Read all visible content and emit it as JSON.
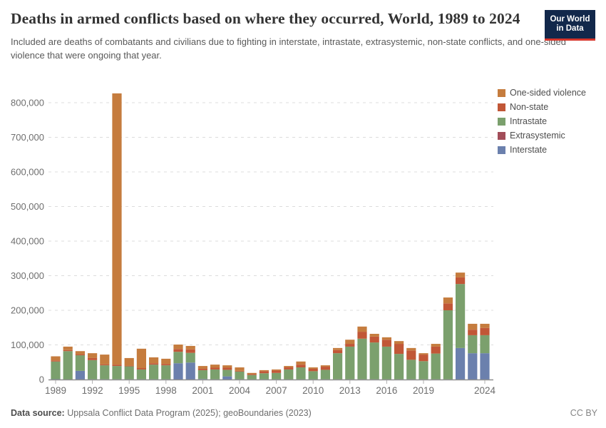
{
  "header": {
    "title": "Deaths in armed conflicts based on where they occurred, World, 1989 to 2024",
    "subtitle": "Included are deaths of combatants and civilians due to fighting in interstate, intrastate, extrasystemic, non-state conflicts, and one-sided violence that were ongoing that year.",
    "logo_line1": "Our World",
    "logo_line2": "in Data",
    "logo_bg_color": "#12284b",
    "logo_accent_color": "#d7362c"
  },
  "footer": {
    "datasource_label": "Data source:",
    "datasource_value": "Uppsala Conflict Data Program (2025); geoBoundaries (2023)",
    "license": "CC BY"
  },
  "legend": [
    {
      "key": "one_sided",
      "label": "One-sided violence",
      "color": "#C57C3E"
    },
    {
      "key": "non_state",
      "label": "Non-state",
      "color": "#C15737"
    },
    {
      "key": "intrastate",
      "label": "Intrastate",
      "color": "#7BA06D"
    },
    {
      "key": "extrasystemic",
      "label": "Extrasystemic",
      "color": "#A24D59"
    },
    {
      "key": "interstate",
      "label": "Interstate",
      "color": "#6B80AD"
    }
  ],
  "chart_data": {
    "type": "bar",
    "stacked": true,
    "title": "Deaths in armed conflicts based on where they occurred, World, 1989 to 2024",
    "xlabel": "",
    "ylabel": "",
    "ylim": [
      0,
      800000
    ],
    "y_ticks": [
      0,
      100000,
      200000,
      300000,
      400000,
      500000,
      600000,
      700000,
      800000
    ],
    "x_tick_years": [
      1989,
      1992,
      1995,
      1998,
      2001,
      2004,
      2007,
      2010,
      2013,
      2016,
      2019,
      2024
    ],
    "grid": "dashed-horizontal",
    "legend_position": "right",
    "years": [
      1989,
      1990,
      1991,
      1992,
      1993,
      1994,
      1995,
      1996,
      1997,
      1998,
      1999,
      2000,
      2001,
      2002,
      2003,
      2004,
      2005,
      2006,
      2007,
      2008,
      2009,
      2010,
      2011,
      2012,
      2013,
      2014,
      2015,
      2016,
      2017,
      2018,
      2019,
      2020,
      2021,
      2022,
      2023,
      2024
    ],
    "stack_order": [
      "interstate",
      "extrasystemic",
      "intrastate",
      "non_state",
      "one_sided"
    ],
    "series": [
      {
        "name": "Interstate",
        "key": "interstate",
        "color": "#6B80AD",
        "values": [
          1000,
          0,
          25000,
          500,
          500,
          500,
          500,
          500,
          500,
          500,
          47000,
          49000,
          1500,
          500,
          9000,
          500,
          300,
          300,
          300,
          300,
          300,
          300,
          300,
          300,
          300,
          300,
          300,
          300,
          300,
          300,
          300,
          300,
          300,
          91000,
          76000,
          76000
        ]
      },
      {
        "name": "Extrasystemic",
        "key": "extrasystemic",
        "color": "#A24D59",
        "values": [
          0,
          0,
          0,
          0,
          0,
          0,
          0,
          0,
          0,
          0,
          0,
          0,
          0,
          0,
          0,
          0,
          0,
          0,
          0,
          0,
          0,
          0,
          0,
          0,
          0,
          0,
          0,
          0,
          0,
          0,
          0,
          0,
          0,
          0,
          0,
          0
        ]
      },
      {
        "name": "Intrastate",
        "key": "intrastate",
        "color": "#7BA06D",
        "values": [
          51000,
          82000,
          45000,
          55500,
          40500,
          38500,
          37500,
          28500,
          42500,
          40500,
          33000,
          28000,
          25500,
          28500,
          19000,
          22500,
          12700,
          17700,
          18700,
          28700,
          34700,
          23700,
          27700,
          75700,
          94700,
          117700,
          106700,
          94700,
          73700,
          56700,
          52700,
          74700,
          199700,
          185000,
          52000,
          52000
        ]
      },
      {
        "name": "Non-state",
        "key": "non_state",
        "color": "#C15737",
        "values": [
          3000,
          3000,
          3000,
          6000,
          3000,
          4000,
          2000,
          4000,
          4000,
          4000,
          8000,
          10000,
          4000,
          5000,
          6000,
          2000,
          2500,
          6000,
          7000,
          6000,
          8000,
          7000,
          9000,
          9000,
          8000,
          20000,
          17000,
          20000,
          29000,
          27000,
          19000,
          20000,
          20000,
          19000,
          16000,
          21000
        ]
      },
      {
        "name": "One-sided violence",
        "key": "one_sided",
        "color": "#C57C3E",
        "values": [
          12000,
          10000,
          9000,
          14000,
          28000,
          784000,
          22000,
          56000,
          17000,
          15000,
          13000,
          10000,
          8000,
          9000,
          7000,
          10000,
          3500,
          3000,
          3000,
          4000,
          9000,
          4000,
          4000,
          6000,
          12000,
          15000,
          8000,
          7000,
          8000,
          7000,
          4000,
          8000,
          17000,
          14000,
          17000,
          12000
        ]
      }
    ]
  },
  "style": {
    "gridline_color": "#dcdcdc",
    "axis_line_color": "#8f8f8f",
    "tick_color": "#b0b0b0",
    "axis_label_color": "#6e6e6e"
  }
}
